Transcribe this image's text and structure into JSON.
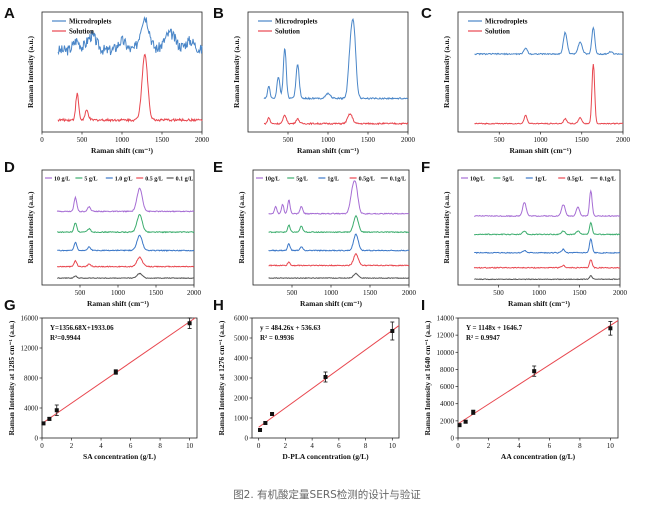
{
  "caption": "图2. 有机酸定量SERS检测的设计与验证",
  "colors": {
    "microdroplets": "#4a86c8",
    "solution": "#e8474f",
    "c10": "#a66dd4",
    "c5": "#3cad6e",
    "c1": "#3c78c8",
    "c05": "#e8474f",
    "c01": "#555555",
    "fit": "#e8474f",
    "point": "#111111"
  },
  "chart_data": [
    {
      "panel": "A",
      "type": "line",
      "xlabel": "Raman shift (cm⁻¹)",
      "ylabel": "Raman Intensity (a.u.)",
      "xlim": [
        0,
        2000
      ],
      "xticks": [
        0,
        500,
        1000,
        1500,
        2000
      ],
      "legend": [
        "Microdroplets",
        "Solution"
      ],
      "series": [
        {
          "name": "Microdroplets",
          "offset": 0.58,
          "base": 0.1,
          "noise": 0.045,
          "peaks": [
            [
              430,
              0.08,
              40
            ],
            [
              620,
              0.12,
              60
            ],
            [
              1000,
              0.08,
              50
            ],
            [
              1285,
              0.28,
              55
            ],
            [
              1600,
              0.14,
              70
            ],
            [
              1850,
              0.08,
              60
            ]
          ]
        },
        {
          "name": "Solution",
          "offset": 0.05,
          "base": 0.05,
          "noise": 0.01,
          "peaks": [
            [
              440,
              0.22,
              18
            ],
            [
              560,
              0.08,
              20
            ],
            [
              1285,
              0.55,
              35
            ]
          ]
        }
      ]
    },
    {
      "panel": "B",
      "type": "line",
      "xlabel": "Raman shift (cm⁻¹)",
      "ylabel": "Raman Intensity (a.u.)",
      "xlim": [
        0,
        2000
      ],
      "xticks": [
        500,
        1000,
        1500,
        2000
      ],
      "legend": [
        "Microdroplets",
        "Solution"
      ],
      "series": [
        {
          "name": "Microdroplets",
          "offset": 0.25,
          "base": 0.03,
          "noise": 0.006,
          "peaks": [
            [
              260,
              0.1,
              15
            ],
            [
              380,
              0.18,
              18
            ],
            [
              460,
              0.42,
              18
            ],
            [
              620,
              0.28,
              20
            ],
            [
              1000,
              0.04,
              30
            ],
            [
              1276,
              0.3,
              25
            ],
            [
              1320,
              0.58,
              28
            ]
          ]
        },
        {
          "name": "Solution",
          "offset": 0.05,
          "base": 0.02,
          "noise": 0.006,
          "peaks": [
            [
              260,
              0.05,
              15
            ],
            [
              460,
              0.07,
              20
            ],
            [
              620,
              0.04,
              20
            ],
            [
              1276,
              0.08,
              30
            ]
          ]
        }
      ]
    },
    {
      "panel": "C",
      "type": "line",
      "xlabel": "Raman shift (cm⁻¹)",
      "ylabel": "Raman Intensity (a.u.)",
      "xlim": [
        0,
        2000
      ],
      "xticks": [
        500,
        1000,
        1500,
        2000
      ],
      "legend": [
        "Microdroplets",
        "Solution"
      ],
      "series": [
        {
          "name": "Microdroplets",
          "offset": 0.62,
          "base": 0.03,
          "noise": 0.005,
          "peaks": [
            [
              820,
              0.05,
              20
            ],
            [
              1300,
              0.18,
              22
            ],
            [
              1480,
              0.1,
              25
            ],
            [
              1640,
              0.22,
              18
            ],
            [
              1850,
              0.02,
              20
            ]
          ]
        },
        {
          "name": "Solution",
          "offset": 0.05,
          "base": 0.02,
          "noise": 0.004,
          "peaks": [
            [
              820,
              0.07,
              18
            ],
            [
              1300,
              0.04,
              20
            ],
            [
              1480,
              0.05,
              20
            ],
            [
              1640,
              0.5,
              16
            ]
          ]
        }
      ]
    },
    {
      "panel": "D",
      "type": "line",
      "xlabel": "Raman shift (cm⁻¹)",
      "ylabel": "Raman Intensity (a.u.)",
      "xlim": [
        0,
        2000
      ],
      "xticks": [
        500,
        1000,
        1500,
        2000
      ],
      "legend": [
        "10 g/L",
        "5 g/L",
        "1.0 g/L",
        "0.5 g/L",
        "0.1 g/L"
      ],
      "series": [
        {
          "name": "10 g/L",
          "offset": 0.62,
          "base": 0.02,
          "noise": 0.004,
          "peaks": [
            [
              440,
              0.12,
              18
            ],
            [
              620,
              0.04,
              20
            ],
            [
              1285,
              0.2,
              35
            ]
          ]
        },
        {
          "name": "5 g/L",
          "offset": 0.44,
          "base": 0.02,
          "noise": 0.004,
          "peaks": [
            [
              440,
              0.08,
              18
            ],
            [
              620,
              0.03,
              20
            ],
            [
              1285,
              0.15,
              35
            ]
          ]
        },
        {
          "name": "1.0 g/L",
          "offset": 0.28,
          "base": 0.02,
          "noise": 0.004,
          "peaks": [
            [
              440,
              0.07,
              18
            ],
            [
              620,
              0.03,
              20
            ],
            [
              1285,
              0.13,
              35
            ]
          ]
        },
        {
          "name": "0.5 g/L",
          "offset": 0.14,
          "base": 0.02,
          "noise": 0.004,
          "peaks": [
            [
              440,
              0.05,
              18
            ],
            [
              620,
              0.02,
              20
            ],
            [
              1285,
              0.08,
              35
            ]
          ]
        },
        {
          "name": "0.1 g/L",
          "offset": 0.04,
          "base": 0.02,
          "noise": 0.003,
          "peaks": [
            [
              440,
              0.02,
              18
            ],
            [
              1285,
              0.04,
              35
            ]
          ]
        }
      ]
    },
    {
      "panel": "E",
      "type": "line",
      "xlabel": "Raman shift (cm⁻¹)",
      "ylabel": "Raman Intensity (a.u.)",
      "xlim": [
        0,
        2000
      ],
      "xticks": [
        500,
        1000,
        1500,
        2000
      ],
      "legend": [
        "10g/L",
        "5g/L",
        "1g/L",
        "0.5g/L",
        "0.1g/L"
      ],
      "series": [
        {
          "name": "10g/L",
          "offset": 0.6,
          "base": 0.02,
          "noise": 0.004,
          "peaks": [
            [
              290,
              0.06,
              15
            ],
            [
              380,
              0.08,
              15
            ],
            [
              460,
              0.12,
              15
            ],
            [
              620,
              0.06,
              18
            ],
            [
              1276,
              0.18,
              30
            ],
            [
              1320,
              0.2,
              28
            ]
          ]
        },
        {
          "name": "5g/L",
          "offset": 0.44,
          "base": 0.02,
          "noise": 0.004,
          "peaks": [
            [
              460,
              0.06,
              15
            ],
            [
              620,
              0.05,
              18
            ],
            [
              1320,
              0.14,
              30
            ]
          ]
        },
        {
          "name": "1g/L",
          "offset": 0.28,
          "base": 0.02,
          "noise": 0.004,
          "peaks": [
            [
              460,
              0.06,
              15
            ],
            [
              620,
              0.03,
              18
            ],
            [
              1320,
              0.14,
              30
            ]
          ]
        },
        {
          "name": "0.5g/L",
          "offset": 0.15,
          "base": 0.02,
          "noise": 0.004,
          "peaks": [
            [
              460,
              0.03,
              15
            ],
            [
              1320,
              0.1,
              30
            ]
          ]
        },
        {
          "name": "0.1g/L",
          "offset": 0.04,
          "base": 0.02,
          "noise": 0.003,
          "peaks": [
            [
              1320,
              0.04,
              30
            ]
          ]
        }
      ]
    },
    {
      "panel": "F",
      "type": "line",
      "xlabel": "Raman shift (cm⁻¹)",
      "ylabel": "Raman Intensity (a.u.)",
      "xlim": [
        0,
        2000
      ],
      "xticks": [
        500,
        1000,
        1500,
        2000
      ],
      "legend": [
        "10g/L",
        "5g/L",
        "1g/L",
        "0.5g/L",
        "0.1g/L"
      ],
      "series": [
        {
          "name": "10g/L",
          "offset": 0.58,
          "base": 0.02,
          "noise": 0.004,
          "peaks": [
            [
              820,
              0.12,
              22
            ],
            [
              1300,
              0.1,
              22
            ],
            [
              1480,
              0.08,
              20
            ],
            [
              1640,
              0.22,
              16
            ]
          ]
        },
        {
          "name": "5g/L",
          "offset": 0.42,
          "base": 0.02,
          "noise": 0.004,
          "peaks": [
            [
              820,
              0.03,
              20
            ],
            [
              1300,
              0.03,
              20
            ],
            [
              1480,
              0.03,
              20
            ],
            [
              1640,
              0.1,
              16
            ]
          ]
        },
        {
          "name": "1g/L",
          "offset": 0.26,
          "base": 0.02,
          "noise": 0.004,
          "peaks": [
            [
              820,
              0.02,
              20
            ],
            [
              1300,
              0.03,
              20
            ],
            [
              1640,
              0.12,
              16
            ]
          ]
        },
        {
          "name": "0.5g/L",
          "offset": 0.13,
          "base": 0.02,
          "noise": 0.004,
          "peaks": [
            [
              1300,
              0.02,
              20
            ],
            [
              1640,
              0.07,
              16
            ]
          ]
        },
        {
          "name": "0.1g/L",
          "offset": 0.03,
          "base": 0.02,
          "noise": 0.003,
          "peaks": [
            [
              1640,
              0.03,
              16
            ]
          ]
        }
      ]
    },
    {
      "panel": "G",
      "type": "scatter",
      "xlabel": "SA concentration (g/L)",
      "ylabel": "Raman Intensity at 1285 cm⁻¹ (a.u.)",
      "xlim": [
        0,
        10.5
      ],
      "xticks": [
        0,
        2,
        4,
        6,
        8,
        10
      ],
      "ylim": [
        0,
        16000
      ],
      "yticks": [
        0,
        4000,
        8000,
        12000,
        16000
      ],
      "equation": "Y=1356.68X+1933.06",
      "r2": "R²=0.9944",
      "fit": {
        "slope": 1356.68,
        "intercept": 1933.06
      },
      "points": [
        [
          0.1,
          1950,
          150
        ],
        [
          0.5,
          2550,
          200
        ],
        [
          1.0,
          3700,
          700
        ],
        [
          5.0,
          8800,
          300
        ],
        [
          10.0,
          15300,
          700
        ]
      ]
    },
    {
      "panel": "H",
      "type": "scatter",
      "xlabel": "D-PLA concentration (g/L)",
      "ylabel": "Raman Intensity at 1276 cm⁻¹ (a.u.)",
      "xlim": [
        -0.5,
        10.5
      ],
      "xticks": [
        0,
        2,
        4,
        6,
        8,
        10
      ],
      "ylim": [
        0,
        6000
      ],
      "yticks": [
        0,
        1000,
        2000,
        3000,
        4000,
        5000,
        6000
      ],
      "equation": "y = 484.26x + 536.63",
      "r2": "R² = 0.9936",
      "fit": {
        "slope": 484.26,
        "intercept": 536.63
      },
      "points": [
        [
          0.1,
          400,
          40
        ],
        [
          0.5,
          750,
          60
        ],
        [
          1.0,
          1200,
          60
        ],
        [
          5.0,
          3050,
          250
        ],
        [
          10.0,
          5350,
          450
        ]
      ]
    },
    {
      "panel": "I",
      "type": "scatter",
      "xlabel": "AA concentration (g/L)",
      "ylabel": "Raman Intensity at 1640 cm⁻¹ (a.u.)",
      "xlim": [
        0,
        10.5
      ],
      "xticks": [
        0,
        2,
        4,
        6,
        8,
        10
      ],
      "ylim": [
        0,
        14000
      ],
      "yticks": [
        0,
        2000,
        4000,
        6000,
        8000,
        10000,
        12000,
        14000
      ],
      "equation": "Y = 1148x + 1646.7",
      "r2": "R² = 0.9947",
      "fit": {
        "slope": 1148,
        "intercept": 1646.7
      },
      "points": [
        [
          0.1,
          1500,
          150
        ],
        [
          0.5,
          1900,
          150
        ],
        [
          1.0,
          3000,
          250
        ],
        [
          5.0,
          7800,
          600
        ],
        [
          10.0,
          12800,
          800
        ]
      ]
    }
  ]
}
